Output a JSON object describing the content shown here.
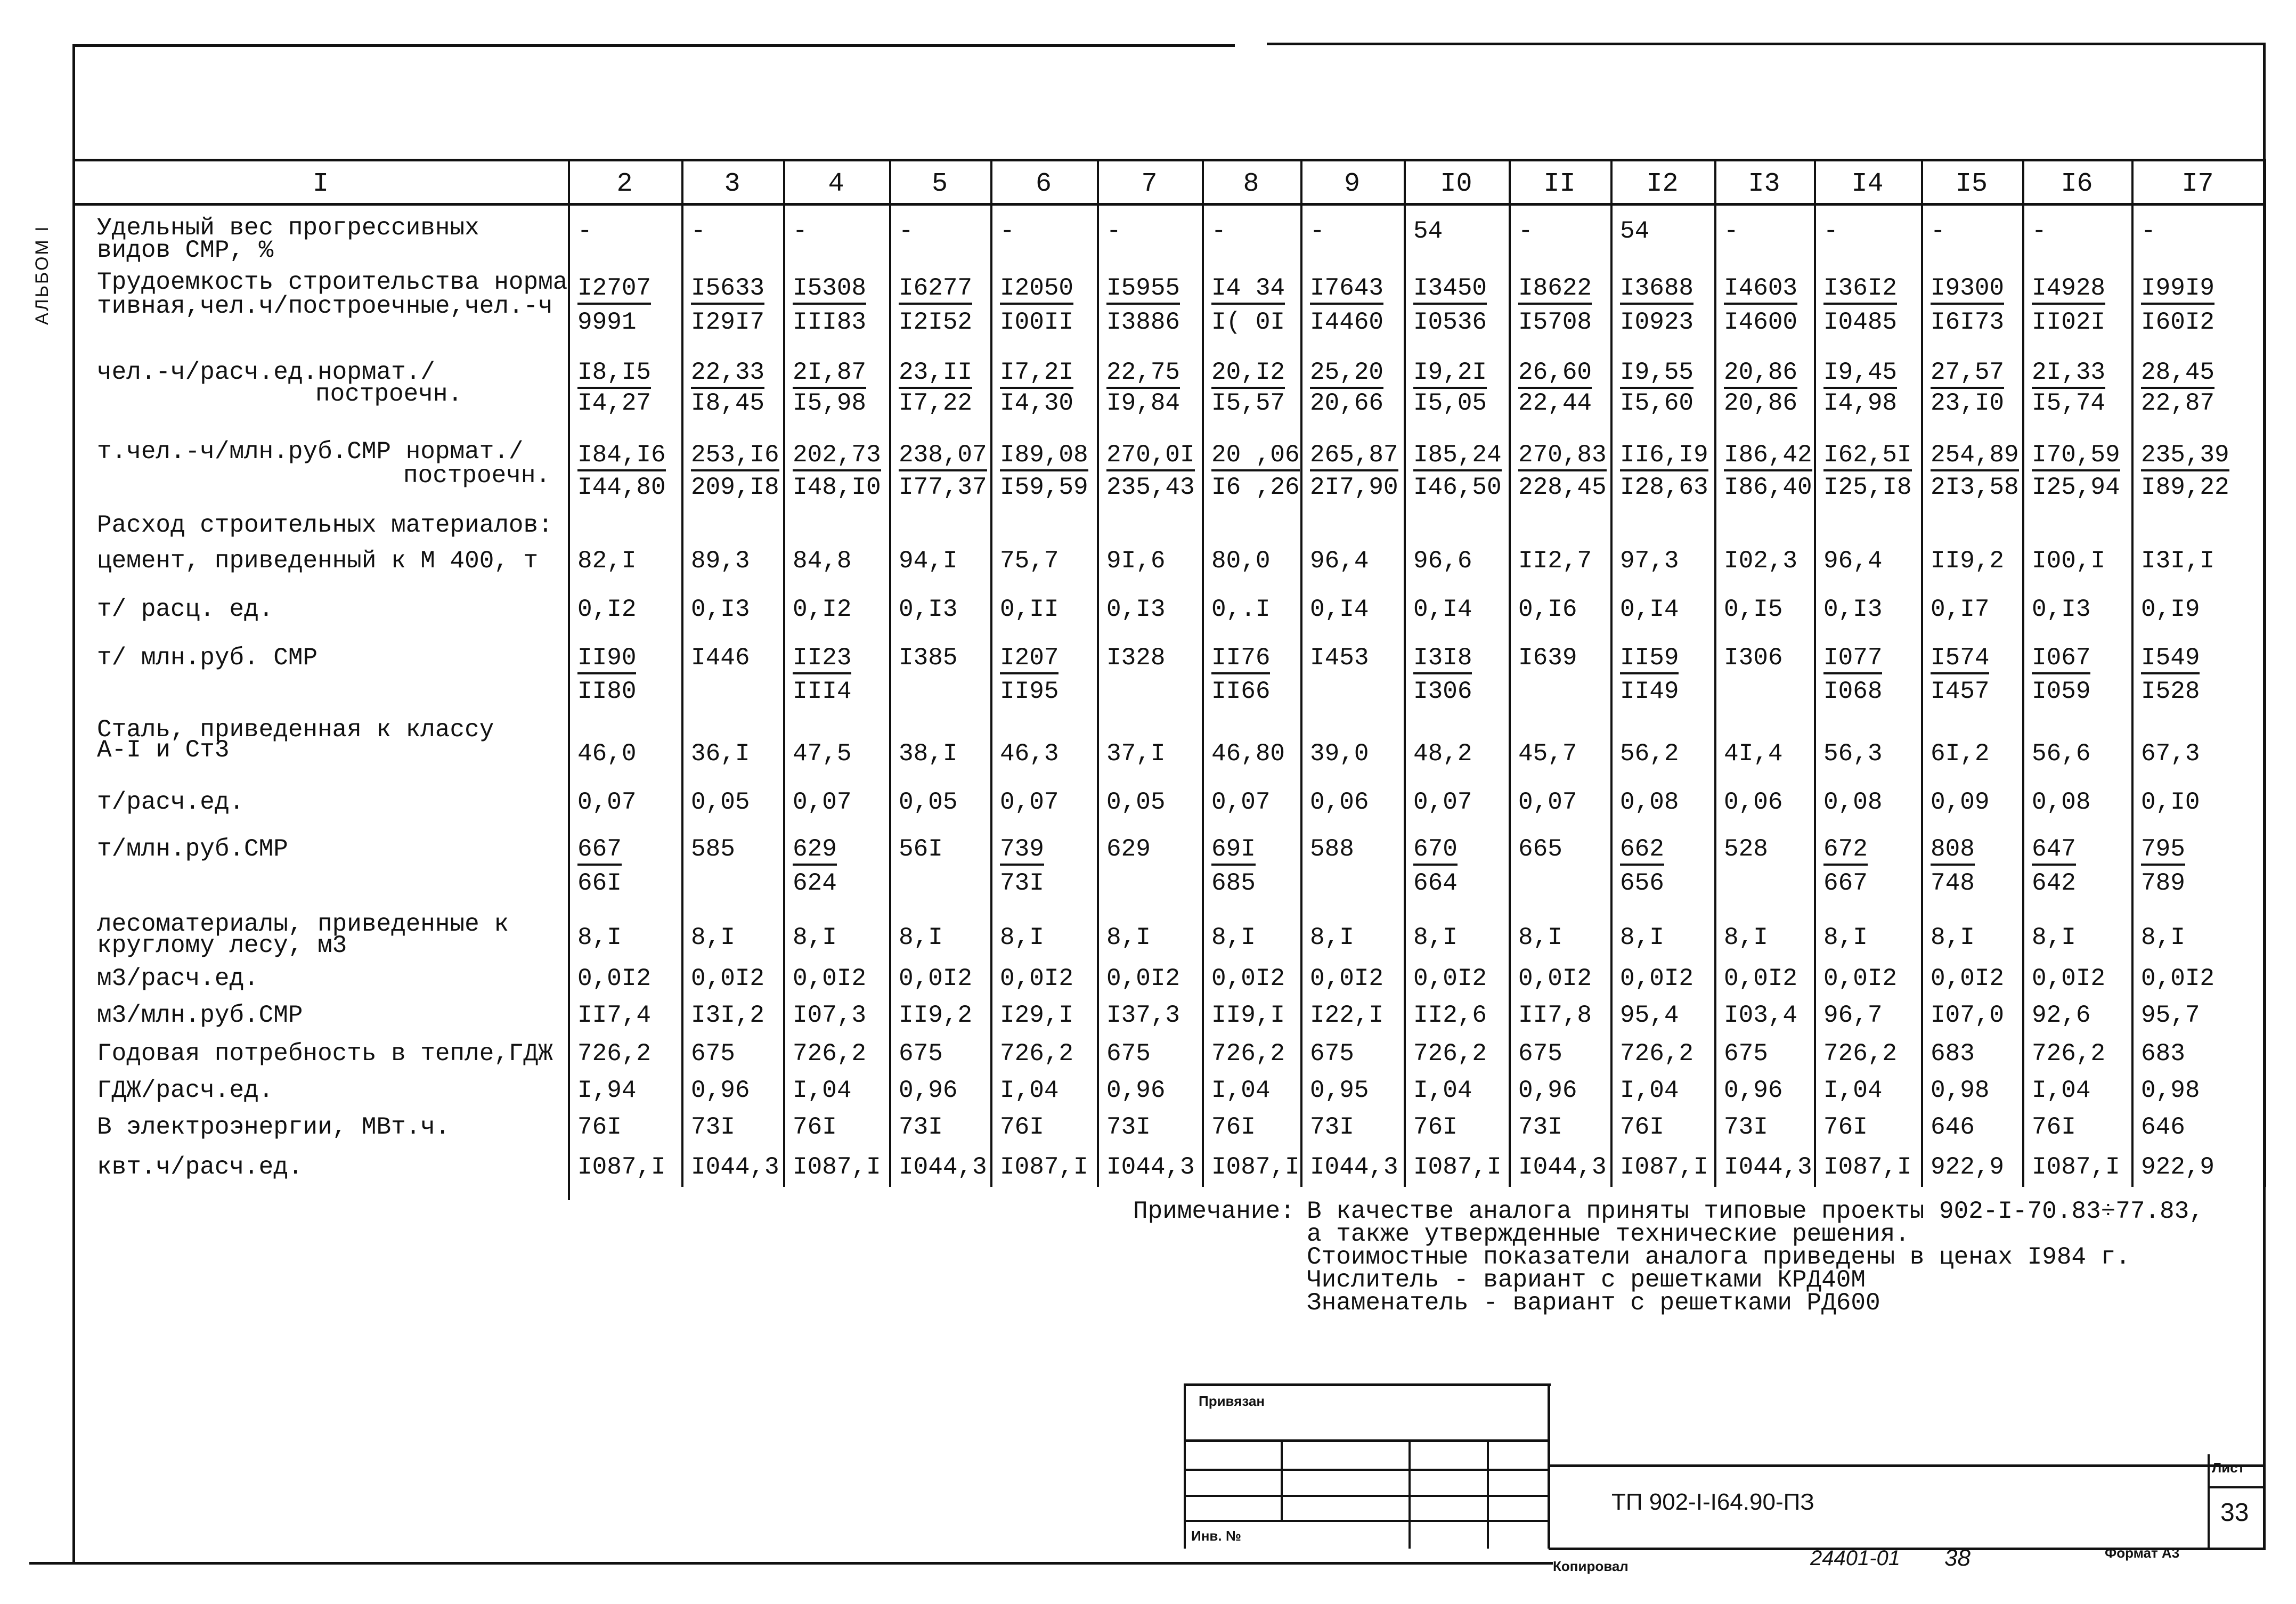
{
  "side_label": "АЛЬБОМ I",
  "header": {
    "label_col": "I",
    "columns": [
      "2",
      "3",
      "4",
      "5",
      "6",
      "7",
      "8",
      "9",
      "I0",
      "II",
      "I2",
      "I3",
      "I4",
      "I5",
      "I6",
      "I7"
    ]
  },
  "rows": [
    {
      "label": [
        "Удельный вес прогрессивных",
        "видов СМР, %"
      ],
      "values": [
        "-",
        "-",
        "-",
        "-",
        "-",
        "-",
        "-",
        "-",
        "54",
        "-",
        "54",
        "-",
        "-",
        "-",
        "-",
        "-"
      ]
    },
    {
      "label": [
        "Трудоемкость строительства норма",
        "тивная,чел.ч/построечные,чел.-ч"
      ],
      "values": [
        [
          "I2707",
          "9991"
        ],
        [
          "I5633",
          "I29I7"
        ],
        [
          "I5308",
          "III83"
        ],
        [
          "I6277",
          "I2I52"
        ],
        [
          "I2050",
          "I00II"
        ],
        [
          "I5955",
          "I3886"
        ],
        [
          "I4 34",
          "I( 0I"
        ],
        [
          "I7643",
          "I4460"
        ],
        [
          "I3450",
          "I0536"
        ],
        [
          "I8622",
          "I5708"
        ],
        [
          "I3688",
          "I0923"
        ],
        [
          "I4603",
          "I4600"
        ],
        [
          "I36I2",
          "I0485"
        ],
        [
          "I9300",
          "I6I73"
        ],
        [
          "I4928",
          "II02I"
        ],
        [
          "I99I9",
          "I60I2"
        ]
      ]
    },
    {
      "label": [
        "чел.-ч/расч.ед.нормат./",
        "построечн."
      ],
      "values": [
        [
          "I8,I5",
          "I4,27"
        ],
        [
          "22,33",
          "I8,45"
        ],
        [
          "2I,87",
          "I5,98"
        ],
        [
          "23,II",
          "I7,22"
        ],
        [
          "I7,2I",
          "I4,30"
        ],
        [
          "22,75",
          "I9,84"
        ],
        [
          "20,I2",
          "I5,57"
        ],
        [
          "25,20",
          "20,66"
        ],
        [
          "I9,2I",
          "I5,05"
        ],
        [
          "26,60",
          "22,44"
        ],
        [
          "I9,55",
          "I5,60"
        ],
        [
          "20,86",
          "20,86"
        ],
        [
          "I9,45",
          "I4,98"
        ],
        [
          "27,57",
          "23,I0"
        ],
        [
          "2I,33",
          "I5,74"
        ],
        [
          "28,45",
          "22,87"
        ]
      ]
    },
    {
      "label": [
        "т.чел.-ч/млн.руб.СМР нормат./",
        "построечн."
      ],
      "values": [
        [
          "I84,I6",
          "I44,80"
        ],
        [
          "253,I6",
          "209,I8"
        ],
        [
          "202,73",
          "I48,I0"
        ],
        [
          "238,07",
          "I77,37"
        ],
        [
          "I89,08",
          "I59,59"
        ],
        [
          "270,0I",
          "235,43"
        ],
        [
          "20 ,06",
          "I6 ,26"
        ],
        [
          "265,87",
          "2I7,90"
        ],
        [
          "I85,24",
          "I46,50"
        ],
        [
          "270,83",
          "228,45"
        ],
        [
          "II6,I9",
          "I28,63"
        ],
        [
          "I86,42",
          "I86,40"
        ],
        [
          "I62,5I",
          "I25,I8"
        ],
        [
          "254,89",
          "2I3,58"
        ],
        [
          "I70,59",
          "I25,94"
        ],
        [
          "235,39",
          "I89,22"
        ]
      ]
    },
    {
      "label": [
        "Расход строительных материалов:"
      ],
      "values": []
    },
    {
      "label": [
        "цемент, приведенный к М 400, т"
      ],
      "values": [
        "82,I",
        "89,3",
        "84,8",
        "94,I",
        "75,7",
        "9I,6",
        "80,0",
        "96,4",
        "96,6",
        "II2,7",
        "97,3",
        "I02,3",
        "96,4",
        "II9,2",
        "I00,I",
        "I3I,I"
      ]
    },
    {
      "label": [
        "т/ расц. ед."
      ],
      "values": [
        "0,I2",
        "0,I3",
        "0,I2",
        "0,I3",
        "0,II",
        "0,I3",
        "0,.I",
        "0,I4",
        "0,I4",
        "0,I6",
        "0,I4",
        "0,I5",
        "0,I3",
        "0,I7",
        "0,I3",
        "0,I9"
      ]
    },
    {
      "label": [
        "т/ млн.руб. СМР"
      ],
      "values": [
        [
          "II90",
          "II80"
        ],
        "I446",
        [
          "II23",
          "III4"
        ],
        "I385",
        [
          "I207",
          "II95"
        ],
        "I328",
        [
          "II76",
          "II66"
        ],
        "I453",
        [
          "I3I8",
          "I306"
        ],
        "I639",
        [
          "II59",
          "II49"
        ],
        "I306",
        [
          "I077",
          "I068"
        ],
        [
          "I574",
          "I457"
        ],
        [
          "I067",
          "I059"
        ],
        [
          "I549",
          "I528"
        ]
      ]
    },
    {
      "label": [
        "Сталь, приведенная к классу",
        "А-I и Ст3"
      ],
      "values": [
        "46,0",
        "36,I",
        "47,5",
        "38,I",
        "46,3",
        "37,I",
        "46,80",
        "39,0",
        "48,2",
        "45,7",
        "56,2",
        "4I,4",
        "56,3",
        "6I,2",
        "56,6",
        "67,3"
      ]
    },
    {
      "label": [
        "т/расч.ед."
      ],
      "values": [
        "0,07",
        "0,05",
        "0,07",
        "0,05",
        "0,07",
        "0,05",
        "0,07",
        "0,06",
        "0,07",
        "0,07",
        "0,08",
        "0,06",
        "0,08",
        "0,09",
        "0,08",
        "0,I0"
      ]
    },
    {
      "label": [
        "т/млн.руб.СМР"
      ],
      "values": [
        [
          "667",
          "66I"
        ],
        "585",
        [
          "629",
          "624"
        ],
        "56I",
        [
          "739",
          "73I"
        ],
        "629",
        [
          "69I",
          "685"
        ],
        "588",
        [
          "670",
          "664"
        ],
        "665",
        [
          "662",
          "656"
        ],
        "528",
        [
          "672",
          "667"
        ],
        [
          "808",
          "748"
        ],
        [
          "647",
          "642"
        ],
        [
          "795",
          "789"
        ]
      ]
    },
    {
      "label": [
        "лесоматериалы, приведенные к",
        "круглому лесу, м3"
      ],
      "values": [
        "8,I",
        "8,I",
        "8,I",
        "8,I",
        "8,I",
        "8,I",
        "8,I",
        "8,I",
        "8,I",
        "8,I",
        "8,I",
        "8,I",
        "8,I",
        "8,I",
        "8,I",
        "8,I"
      ]
    },
    {
      "label": [
        "м3/расч.ед."
      ],
      "values": [
        "0,0I2",
        "0,0I2",
        "0,0I2",
        "0,0I2",
        "0,0I2",
        "0,0I2",
        "0,0I2",
        "0,0I2",
        "0,0I2",
        "0,0I2",
        "0,0I2",
        "0,0I2",
        "0,0I2",
        "0,0I2",
        "0,0I2",
        "0,0I2"
      ]
    },
    {
      "label": [
        "м3/млн.руб.СМР"
      ],
      "values": [
        "II7,4",
        "I3I,2",
        "I07,3",
        "II9,2",
        "I29,I",
        "I37,3",
        "II9,I",
        "I22,I",
        "II2,6",
        "II7,8",
        "95,4",
        "I03,4",
        "96,7",
        "I07,0",
        "92,6",
        "95,7"
      ]
    },
    {
      "label": [
        "Годовая потребность в тепле,ГДЖ"
      ],
      "values": [
        "726,2",
        "675",
        "726,2",
        "675",
        "726,2",
        "675",
        "726,2",
        "675",
        "726,2",
        "675",
        "726,2",
        "675",
        "726,2",
        "683",
        "726,2",
        "683"
      ]
    },
    {
      "label": [
        "ГДЖ/расч.ед."
      ],
      "values": [
        "I,94",
        "0,96",
        "I,04",
        "0,96",
        "I,04",
        "0,96",
        "I,04",
        "0,95",
        "I,04",
        "0,96",
        "I,04",
        "0,96",
        "I,04",
        "0,98",
        "I,04",
        "0,98"
      ]
    },
    {
      "label": [
        "В электроэнергии, МВт.ч."
      ],
      "values": [
        "76I",
        "73I",
        "76I",
        "73I",
        "76I",
        "73I",
        "76I",
        "73I",
        "76I",
        "73I",
        "76I",
        "73I",
        "76I",
        "646",
        "76I",
        "646"
      ]
    },
    {
      "label": [
        "квт.ч/расч.ед."
      ],
      "values": [
        "I087,I",
        "I044,3",
        "I087,I",
        "I044,3",
        "I087,I",
        "I044,3",
        "I087,I",
        "I044,3",
        "I087,I",
        "I044,3",
        "I087,I",
        "I044,3",
        "I087,I",
        "922,9",
        "I087,I",
        "922,9"
      ]
    }
  ],
  "note": {
    "title": "Примечание:",
    "lines": [
      "В качестве аналога приняты типовые проекты 902-I-70.83÷77.83,",
      "а также утвержденные технические решения.",
      "Стоимостные показатели аналога приведены в ценах I984 г.",
      "Числитель - вариант с решетками КРД40М",
      "Знаменатель - вариант с решетками РД600"
    ]
  },
  "stamp": {
    "linked": "Привязан",
    "inv_no": "Инв. №",
    "doc_code": "ТП 902-I-I64.90-ПЗ",
    "sheet_label": "Лист",
    "sheet_number": "33",
    "copied": "Копировал",
    "order_no": "24401-01",
    "order_page": "38",
    "format": "Формат А3"
  }
}
